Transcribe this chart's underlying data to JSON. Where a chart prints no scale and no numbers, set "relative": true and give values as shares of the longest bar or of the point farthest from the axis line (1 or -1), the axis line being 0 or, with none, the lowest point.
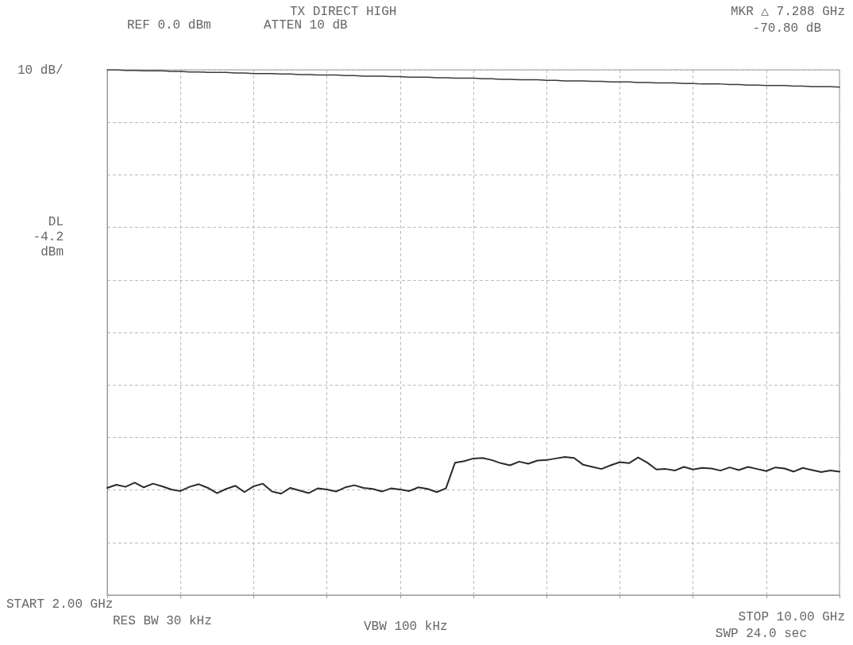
{
  "chart_data": {
    "type": "line",
    "title": "TX DIRECT HIGH",
    "annotations": [
      "REF 0.0 dBm",
      "ATTEN 10 dB",
      "MKR △ 7.288 GHz",
      "-70.80 dB",
      "DL -4.2 dBm",
      "START 2.00 GHz",
      "RES BW 30 kHz",
      "VBW 100 kHz",
      "STOP 10.00 GHz",
      "SWP 24.0 sec",
      "10 dB/"
    ],
    "categories": [
      null,
      null,
      null,
      null,
      null,
      null,
      null,
      null,
      null,
      null,
      null,
      null,
      null,
      null,
      null,
      null,
      null,
      null,
      null,
      null,
      null,
      null,
      null,
      null,
      null,
      null,
      null,
      null,
      null,
      null,
      null,
      null,
      null,
      null,
      null,
      null,
      null,
      null,
      null,
      null,
      null,
      null,
      null,
      null,
      null,
      null,
      null,
      null,
      null,
      null,
      null,
      null,
      null,
      null,
      null,
      null,
      null,
      null,
      null,
      null,
      null,
      null,
      null,
      null,
      null,
      null,
      null,
      null,
      null,
      null,
      null,
      null,
      null,
      null,
      null,
      null,
      null,
      null,
      null,
      null,
      null
    ],
    "relative": true,
    "grid": true,
    "line_style": "solid",
    "marker": "none",
    "series": [
      {
        "color": "#3a3a3a",
        "values": [
          1.0,
          1.0,
          0.999,
          0.999,
          0.998,
          0.998,
          0.998,
          0.997,
          0.997,
          0.996,
          0.996,
          0.995,
          0.995,
          0.995,
          0.994,
          0.994,
          0.993,
          0.993,
          0.993,
          0.992,
          0.992,
          0.991,
          0.991,
          0.99,
          0.99,
          0.99,
          0.989,
          0.989,
          0.988,
          0.988,
          0.988,
          0.987,
          0.987,
          0.986,
          0.986,
          0.986,
          0.985,
          0.985,
          0.984,
          0.984,
          0.984,
          0.983,
          0.983,
          0.982,
          0.982,
          0.981,
          0.981,
          0.981,
          0.98,
          0.98,
          0.979,
          0.979,
          0.979,
          0.978,
          0.978,
          0.977,
          0.977,
          0.977,
          0.976,
          0.976,
          0.975,
          0.975,
          0.975,
          0.974,
          0.974,
          0.973,
          0.973,
          0.973,
          0.972,
          0.972,
          0.971,
          0.971,
          0.97,
          0.97,
          0.97,
          0.969,
          0.969,
          0.968,
          0.968,
          0.968,
          0.967
        ]
      },
      {
        "color": "#2a2a2a",
        "values": [
          0.204,
          0.21,
          0.206,
          0.214,
          0.205,
          0.212,
          0.207,
          0.201,
          0.198,
          0.206,
          0.211,
          0.204,
          0.194,
          0.202,
          0.208,
          0.196,
          0.207,
          0.212,
          0.197,
          0.193,
          0.204,
          0.199,
          0.194,
          0.203,
          0.201,
          0.197,
          0.205,
          0.209,
          0.204,
          0.202,
          0.197,
          0.203,
          0.201,
          0.198,
          0.205,
          0.202,
          0.196,
          0.203,
          0.252,
          0.255,
          0.26,
          0.261,
          0.257,
          0.251,
          0.247,
          0.254,
          0.25,
          0.256,
          0.257,
          0.26,
          0.263,
          0.261,
          0.248,
          0.244,
          0.24,
          0.247,
          0.253,
          0.251,
          0.262,
          0.252,
          0.239,
          0.24,
          0.237,
          0.244,
          0.239,
          0.242,
          0.241,
          0.237,
          0.243,
          0.238,
          0.244,
          0.24,
          0.236,
          0.243,
          0.241,
          0.235,
          0.242,
          0.238,
          0.234,
          0.237,
          0.235
        ]
      }
    ]
  }
}
